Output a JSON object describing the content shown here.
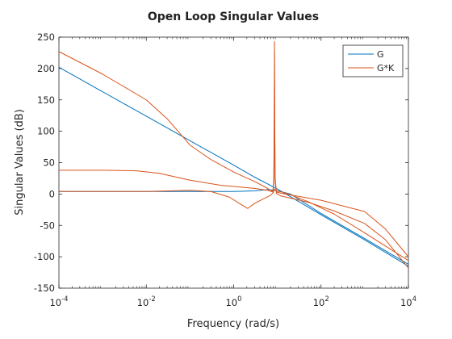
{
  "chart_data": {
    "type": "line",
    "title": "Open Loop Singular Values",
    "xlabel": "Frequency (rad/s)",
    "ylabel": "Singular Values (dB)",
    "xscale": "log",
    "xlim": [
      0.0001,
      10000
    ],
    "ylim": [
      -150,
      250
    ],
    "xtick_base": "10",
    "xticks": [
      {
        "value": 0.0001,
        "exp": "-4"
      },
      {
        "value": 0.01,
        "exp": "-2"
      },
      {
        "value": 1,
        "exp": "0"
      },
      {
        "value": 100,
        "exp": "2"
      },
      {
        "value": 10000,
        "exp": "4"
      }
    ],
    "yticks": [
      -150,
      -100,
      -50,
      0,
      50,
      100,
      150,
      200,
      250
    ],
    "grid": false,
    "legend": "top-right",
    "series": [
      {
        "name": "G",
        "color": "#0072BD",
        "lines": [
          [
            [
              0.0001,
              202
            ],
            [
              0.001,
              163
            ],
            [
              0.01,
              124
            ],
            [
              0.1,
              85
            ],
            [
              1,
              46
            ],
            [
              3,
              27
            ],
            [
              10,
              8
            ],
            [
              100,
              -33
            ],
            [
              1000,
              -73
            ],
            [
              10000,
              -115
            ]
          ],
          [
            [
              0.0001,
              4
            ],
            [
              0.01,
              4
            ],
            [
              1,
              4
            ],
            [
              3,
              5
            ],
            [
              6,
              7
            ],
            [
              9,
              6
            ],
            [
              20,
              0
            ],
            [
              100,
              -31
            ],
            [
              1000,
              -71
            ],
            [
              10000,
              -112
            ]
          ]
        ]
      },
      {
        "name": "G*K",
        "color": "#D95319",
        "lines": [
          [
            [
              0.0001,
              227
            ],
            [
              0.001,
              191
            ],
            [
              0.01,
              150
            ],
            [
              0.03,
              120
            ],
            [
              0.1,
              78
            ],
            [
              0.3,
              55
            ],
            [
              1,
              35
            ],
            [
              3,
              20
            ],
            [
              6,
              9
            ],
            [
              7.9,
              4
            ],
            [
              8.3,
              25
            ],
            [
              8.5,
              120
            ],
            [
              8.6,
              243
            ],
            [
              8.7,
              120
            ],
            [
              8.9,
              25
            ],
            [
              9.5,
              3
            ],
            [
              15,
              0
            ],
            [
              100,
              -10
            ],
            [
              1000,
              -28
            ],
            [
              3000,
              -56
            ],
            [
              10000,
              -100
            ]
          ],
          [
            [
              0.0001,
              38
            ],
            [
              0.001,
              38
            ],
            [
              0.006,
              37
            ],
            [
              0.02,
              33
            ],
            [
              0.1,
              22
            ],
            [
              0.5,
              14
            ],
            [
              1,
              12
            ],
            [
              3,
              9
            ],
            [
              6,
              6
            ],
            [
              7.9,
              3
            ],
            [
              8.3,
              20
            ],
            [
              8.5,
              100
            ],
            [
              8.6,
              225
            ],
            [
              8.7,
              100
            ],
            [
              8.9,
              20
            ],
            [
              9.5,
              1
            ],
            [
              12,
              -3
            ],
            [
              50,
              -13
            ],
            [
              200,
              -27
            ],
            [
              1000,
              -47
            ],
            [
              3000,
              -73
            ],
            [
              10000,
              -118
            ]
          ],
          [
            [
              0.0001,
              4
            ],
            [
              0.01,
              4
            ],
            [
              0.1,
              6
            ],
            [
              0.3,
              4
            ],
            [
              0.8,
              -5
            ],
            [
              1.5,
              -17
            ],
            [
              2.1,
              -23
            ],
            [
              3,
              -15
            ],
            [
              5,
              -7
            ],
            [
              7,
              -2
            ],
            [
              8,
              2
            ],
            [
              8.6,
              8
            ],
            [
              9.5,
              5
            ],
            [
              15,
              2
            ],
            [
              50,
              -12
            ],
            [
              200,
              -32
            ],
            [
              1000,
              -62
            ],
            [
              10000,
              -106
            ]
          ]
        ]
      }
    ]
  }
}
